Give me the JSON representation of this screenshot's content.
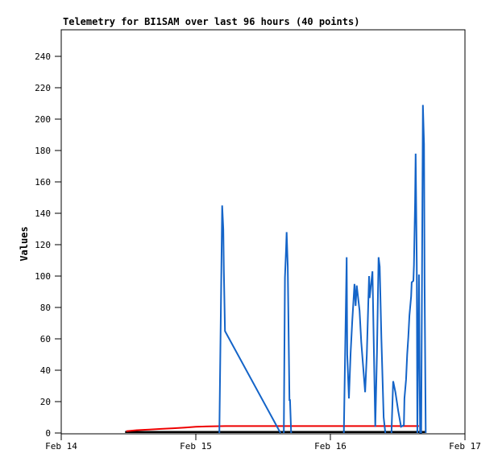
{
  "chart_data": {
    "type": "line",
    "title": "Telemetry for BI1SAM over last 96 hours (40 points)",
    "ylabel": "Values",
    "points_count": 40,
    "window_hours": 96,
    "grid": false,
    "legend": "none",
    "x_axis": {
      "unit": "hours since Feb 14 00:00",
      "min": 0,
      "max": 72,
      "ticks": [
        {
          "hour": 0,
          "label": "Feb 14"
        },
        {
          "hour": 24,
          "label": "Feb 15"
        },
        {
          "hour": 48,
          "label": "Feb 16"
        },
        {
          "hour": 72,
          "label": "Feb 17"
        }
      ]
    },
    "y_axis": {
      "min": 0,
      "max": 257,
      "tick_step": 20,
      "tick_max": 240,
      "tick_labels": [
        "0",
        "20",
        "40",
        "60",
        "80",
        "100",
        "120",
        "140",
        "160",
        "180",
        "200",
        "220",
        "240"
      ]
    },
    "series": [
      {
        "name": "black-baseline-series",
        "color": "#000000",
        "width": 2.5,
        "segments": [
          [
            [
              11.4,
              0.6
            ],
            [
              65.1,
              0.6
            ]
          ]
        ]
      },
      {
        "name": "red-slow-rise-series",
        "color": "#ee0000",
        "width": 2,
        "segments": [
          [
            [
              11.6,
              1.2
            ],
            [
              13.5,
              1.8
            ],
            [
              15.7,
              2.2
            ],
            [
              17.8,
              2.6
            ],
            [
              20.0,
              3.0
            ],
            [
              22.1,
              3.5
            ],
            [
              24.0,
              4.0
            ],
            [
              26.4,
              4.2
            ],
            [
              29.3,
              4.4
            ],
            [
              63.8,
              4.4
            ]
          ]
        ]
      },
      {
        "name": "blue-spiky-series",
        "color": "#1464c8",
        "width": 2,
        "segments": [
          [
            [
              28.2,
              0
            ],
            [
              28.7,
              145
            ],
            [
              28.9,
              130
            ],
            [
              29.0,
              103
            ],
            [
              29.2,
              65
            ],
            [
              39.1,
              0
            ]
          ],
          [
            [
              39.7,
              0
            ],
            [
              39.9,
              99
            ],
            [
              40.1,
              117
            ],
            [
              40.2,
              128
            ],
            [
              40.4,
              106
            ],
            [
              40.7,
              21
            ],
            [
              40.8,
              21
            ],
            [
              41.0,
              0
            ]
          ],
          [
            [
              50.4,
              0
            ],
            [
              50.9,
              112
            ],
            [
              51.0,
              50
            ],
            [
              51.3,
              22
            ],
            [
              51.6,
              51
            ],
            [
              51.9,
              71
            ],
            [
              52.3,
              95
            ],
            [
              52.5,
              81
            ],
            [
              52.7,
              94
            ],
            [
              53.2,
              78
            ],
            [
              53.5,
              58
            ],
            [
              54.2,
              26
            ],
            [
              54.5,
              50
            ],
            [
              54.9,
              100
            ],
            [
              55.0,
              86
            ],
            [
              55.5,
              103
            ],
            [
              56.0,
              4
            ],
            [
              56.3,
              51
            ],
            [
              56.6,
              112
            ],
            [
              56.8,
              106
            ],
            [
              57.1,
              60
            ],
            [
              57.5,
              10
            ],
            [
              57.8,
              0
            ]
          ],
          [
            [
              58.9,
              0
            ],
            [
              59.2,
              33
            ],
            [
              59.6,
              26
            ],
            [
              60.1,
              14
            ],
            [
              60.6,
              4
            ],
            [
              61.1,
              5
            ],
            [
              61.2,
              22
            ],
            [
              61.5,
              34
            ],
            [
              61.7,
              50
            ],
            [
              61.9,
              61
            ],
            [
              62.1,
              75
            ],
            [
              62.4,
              87
            ],
            [
              62.5,
              96
            ],
            [
              62.8,
              97
            ],
            [
              62.9,
              107
            ],
            [
              63.1,
              147
            ],
            [
              63.2,
              178
            ],
            [
              63.4,
              107
            ],
            [
              63.5,
              0
            ],
            [
              63.8,
              101
            ],
            [
              64.0,
              0
            ],
            [
              64.2,
              0
            ],
            [
              64.5,
              209
            ],
            [
              64.7,
              184
            ],
            [
              64.8,
              95
            ],
            [
              65.0,
              0
            ]
          ]
        ]
      }
    ]
  }
}
